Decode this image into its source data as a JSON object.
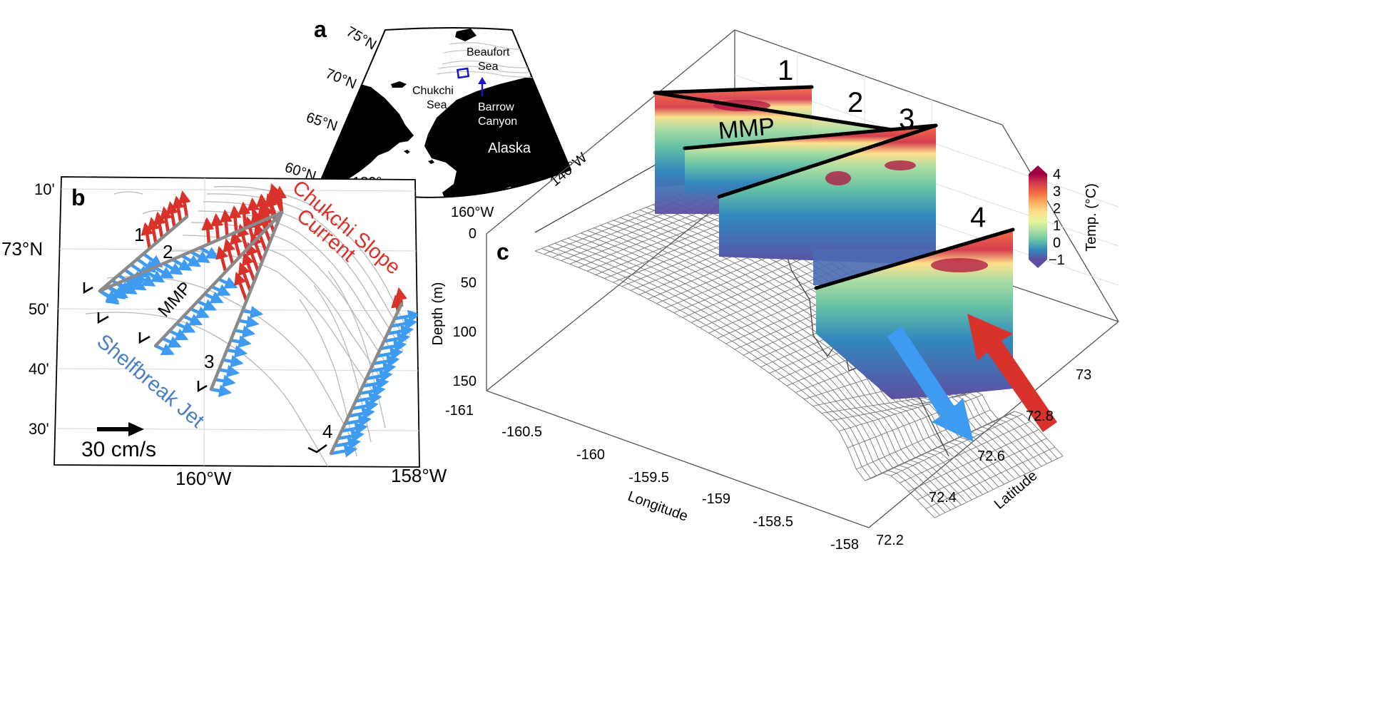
{
  "panel_a": {
    "letter": "a",
    "lat_labels": [
      "75°N",
      "70°N",
      "65°N",
      "60°N"
    ],
    "lon_labels": [
      "180°",
      "160°W",
      "140°W"
    ],
    "places": {
      "beaufort_line1": "Beaufort",
      "beaufort_line2": "Sea",
      "chukchi_line1": "Chukchi",
      "chukchi_line2": "Sea",
      "barrow_line1": "Barrow",
      "barrow_line2": "Canyon",
      "alaska": "Alaska"
    },
    "colors": {
      "land": "#000000",
      "box": "#1515d6"
    }
  },
  "panel_b": {
    "letter": "b",
    "lat_ticks": [
      "10'",
      "73°N",
      "50'",
      "40'",
      "30'"
    ],
    "lon_ticks": [
      "160°W",
      "158°W"
    ],
    "section_labels": [
      "1",
      "2",
      "3",
      "4"
    ],
    "mmp": "MMP",
    "current_line1": "Chukchi Slope",
    "current_line2": "Current",
    "jet": "Shelfbreak Jet",
    "scale_label": "30 cm/s",
    "colors": {
      "current": "#d8322b",
      "jet": "#3f9bf0",
      "section": "#8a8a8a",
      "jet_text": "#4a7fc4"
    }
  },
  "panel_c": {
    "letter": "c",
    "section_labels": [
      "1",
      "2",
      "3",
      "4"
    ],
    "mmp": "MMP",
    "depth_label": "Depth (m)",
    "depth_ticks": [
      "0",
      "50",
      "100",
      "150"
    ],
    "lon_label": "Longitude",
    "lon_ticks": [
      "-161",
      "-160.5",
      "-160",
      "-159.5",
      "-159",
      "-158.5",
      "-158"
    ],
    "lat_label": "Latitude",
    "lat_ticks": [
      "72.2",
      "72.4",
      "72.6",
      "72.8",
      "73"
    ],
    "colorbar": {
      "label": "Temp. (°C)",
      "ticks": [
        "4",
        "3",
        "2",
        "1",
        "0",
        "−1"
      ],
      "range": [
        -1.5,
        4.5
      ],
      "colors": [
        "#5e4fa2",
        "#3288bd",
        "#66c2a5",
        "#abdda4",
        "#e6f598",
        "#fee08b",
        "#fdae61",
        "#f46d43",
        "#d53e4f",
        "#9e0142"
      ]
    },
    "arrow_colors": {
      "shelfbreak": "#3f9bf0",
      "slope": "#d8322b"
    }
  }
}
